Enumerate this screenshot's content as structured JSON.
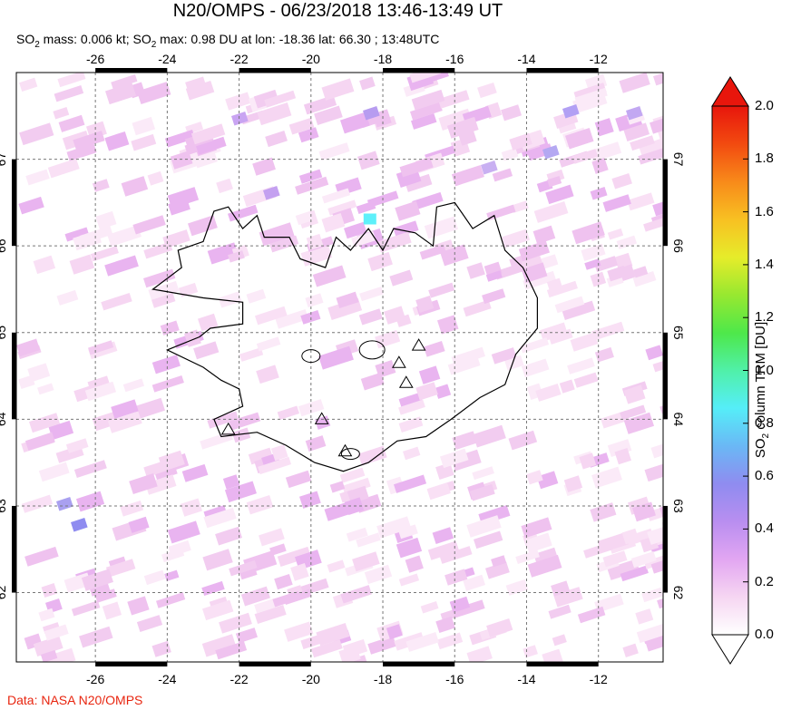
{
  "header": {
    "title": "N20/OMPS - 06/23/2018 13:46-13:49 UT",
    "stats_so2": "SO",
    "stats_sub1": "2",
    "stats_mid": " mass: 0.006 kt; SO",
    "stats_sub2": "2",
    "stats_rest": " max: 0.98 DU at lon: -18.36 lat: 66.30 ; 13:48UTC"
  },
  "footer": {
    "credit": "Data: NASA N20/OMPS"
  },
  "colorbar": {
    "title_main": "SO",
    "title_sub": "2",
    "title_rest": " column TRM [DU]",
    "ticks": [
      "2.0",
      "1.8",
      "1.6",
      "1.4",
      "1.2",
      "1.0",
      "0.8",
      "0.6",
      "0.4",
      "0.2",
      "0.0"
    ],
    "colors": [
      "#ffffff",
      "#f6d6f2",
      "#e2a6f2",
      "#b98ef0",
      "#8f8cf0",
      "#6ab8f5",
      "#55eef8",
      "#50f0a8",
      "#4ee84a",
      "#98e830",
      "#e6ec2a",
      "#f8c022",
      "#f88a1a",
      "#f24a10",
      "#e8160c"
    ]
  },
  "chart_data": {
    "type": "heatmap",
    "title": "N20/OMPS - 06/23/2018 13:46-13:49 UT",
    "xlabel": "",
    "ylabel": "",
    "x_ticks": [
      "-26",
      "-24",
      "-22",
      "-20",
      "-18",
      "-16",
      "-14",
      "-12"
    ],
    "y_ticks": [
      "67",
      "66",
      "65",
      "64",
      "63",
      "62"
    ],
    "xlim": [
      -28.2,
      -10.2
    ],
    "ylim": [
      61.2,
      68.0
    ],
    "grid": true,
    "colorbar_range": [
      0.0,
      2.0
    ],
    "so2_mass_kt": 0.006,
    "so2_max_du": 0.98,
    "max_lon": -18.36,
    "max_lat": 66.3,
    "volcanoes": [
      {
        "lon": -17.0,
        "lat": 64.85
      },
      {
        "lon": -17.55,
        "lat": 64.65
      },
      {
        "lon": -17.35,
        "lat": 64.42
      },
      {
        "lon": -19.7,
        "lat": 64.0
      },
      {
        "lon": -22.3,
        "lat": 63.88
      },
      {
        "lon": -19.05,
        "lat": 63.63
      }
    ]
  }
}
